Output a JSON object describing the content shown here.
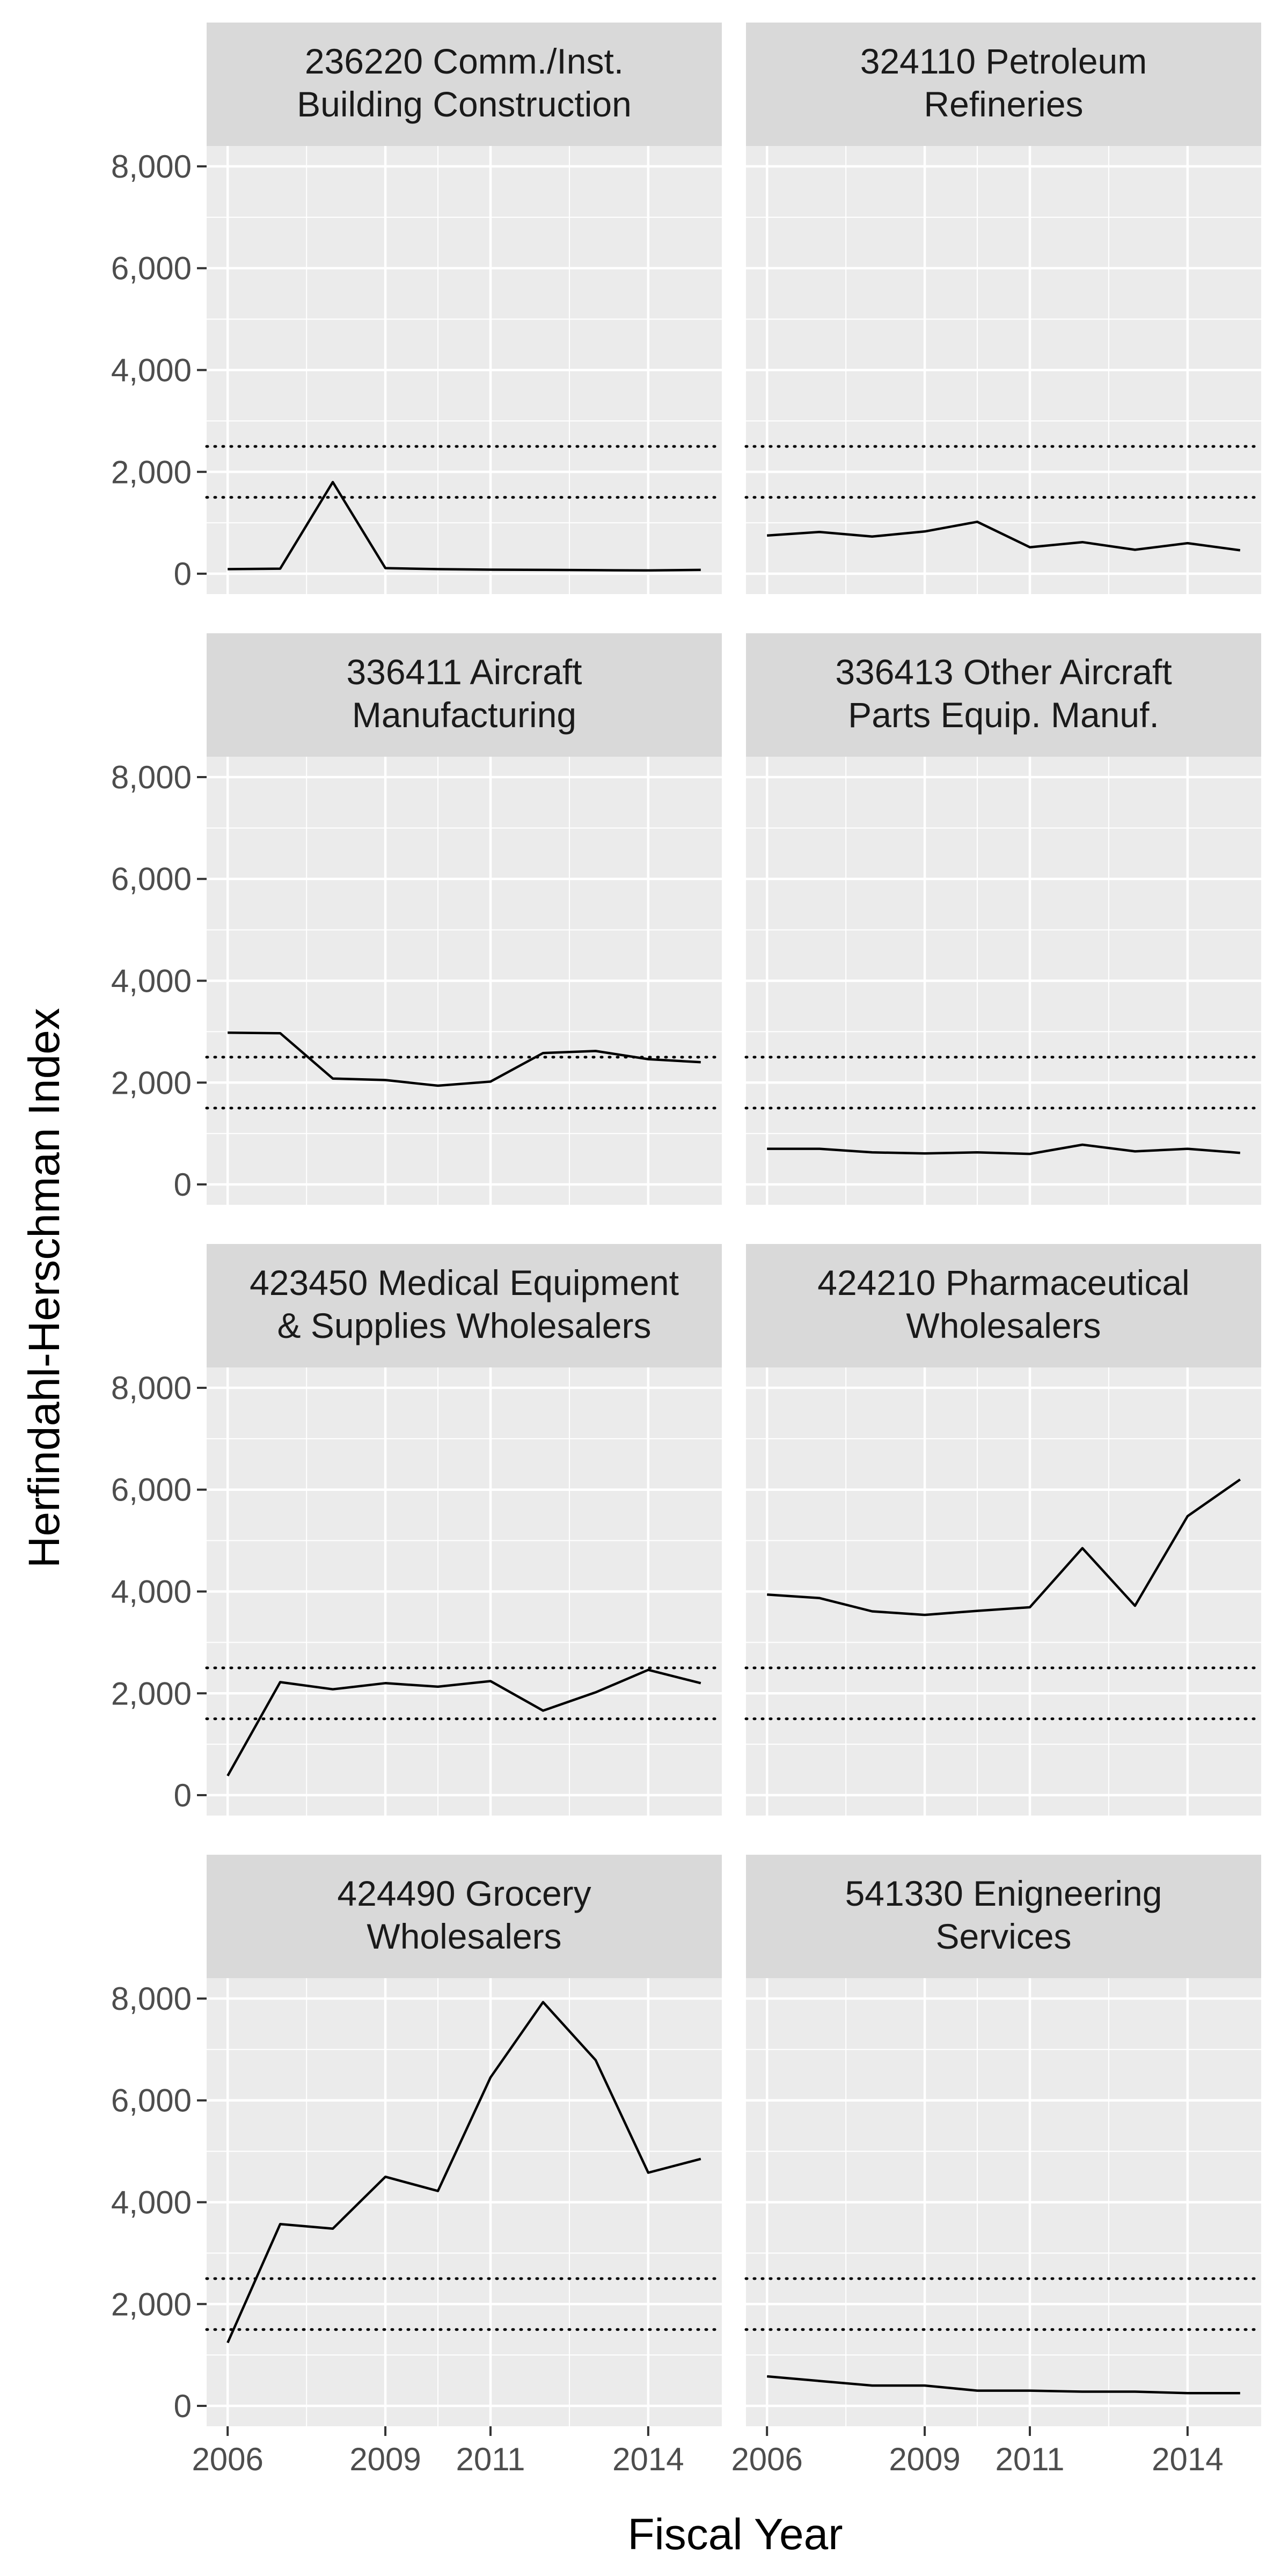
{
  "chart_data": {
    "type": "line",
    "xlabel": "Fiscal Year",
    "ylabel": "Herfindahl-Herschman Index",
    "x_ticks": [
      2006,
      2009,
      2011,
      2014
    ],
    "x_tick_labels": [
      "2006",
      "2009",
      "2011",
      "2014"
    ],
    "xlim": [
      2005.6,
      2015.4
    ],
    "y_ticks": [
      0,
      2000,
      4000,
      6000,
      8000
    ],
    "y_tick_labels": [
      "0",
      "2,000",
      "4,000",
      "6,000",
      "8,000"
    ],
    "ylim": [
      -400,
      8400
    ],
    "reference_lines": [
      1500,
      2500
    ],
    "reference_line_style": "dotted",
    "grid": true,
    "colors": {
      "panel_bg": "#ebebeb",
      "strip_bg": "#d9d9d9",
      "grid": "#ffffff",
      "line": "#000000"
    },
    "x": [
      2006,
      2007,
      2008,
      2009,
      2010,
      2011,
      2012,
      2013,
      2014,
      2015
    ],
    "panels": [
      {
        "title": [
          "236220 Comm./Inst.",
          "Building Construction"
        ],
        "values": [
          90,
          100,
          1800,
          110,
          90,
          80,
          75,
          70,
          65,
          75
        ]
      },
      {
        "title": [
          "324110 Petroleum",
          "Refineries"
        ],
        "values": [
          750,
          820,
          730,
          830,
          1020,
          520,
          620,
          470,
          600,
          460
        ]
      },
      {
        "title": [
          "336411 Aircraft",
          "Manufacturing"
        ],
        "values": [
          2980,
          2970,
          2080,
          2050,
          1940,
          2020,
          2580,
          2620,
          2460,
          2400
        ]
      },
      {
        "title": [
          "336413 Other Aircraft",
          "Parts Equip. Manuf."
        ],
        "values": [
          700,
          700,
          630,
          610,
          630,
          600,
          780,
          650,
          700,
          620
        ]
      },
      {
        "title": [
          "423450 Medical Equipment",
          "& Supplies Wholesalers"
        ],
        "values": [
          380,
          2220,
          2080,
          2200,
          2130,
          2240,
          1660,
          2020,
          2460,
          2200
        ]
      },
      {
        "title": [
          "424210 Pharmaceutical",
          "Wholesalers"
        ],
        "values": [
          3940,
          3870,
          3610,
          3540,
          3620,
          3690,
          4850,
          3720,
          5480,
          6200
        ]
      },
      {
        "title": [
          "424490 Grocery",
          "Wholesalers"
        ],
        "values": [
          1240,
          3570,
          3480,
          4500,
          4220,
          6450,
          7930,
          6790,
          4580,
          4850
        ]
      },
      {
        "title": [
          "541330 Enigneering",
          "Services"
        ],
        "values": [
          580,
          490,
          400,
          400,
          300,
          300,
          280,
          280,
          250,
          250
        ]
      }
    ]
  }
}
